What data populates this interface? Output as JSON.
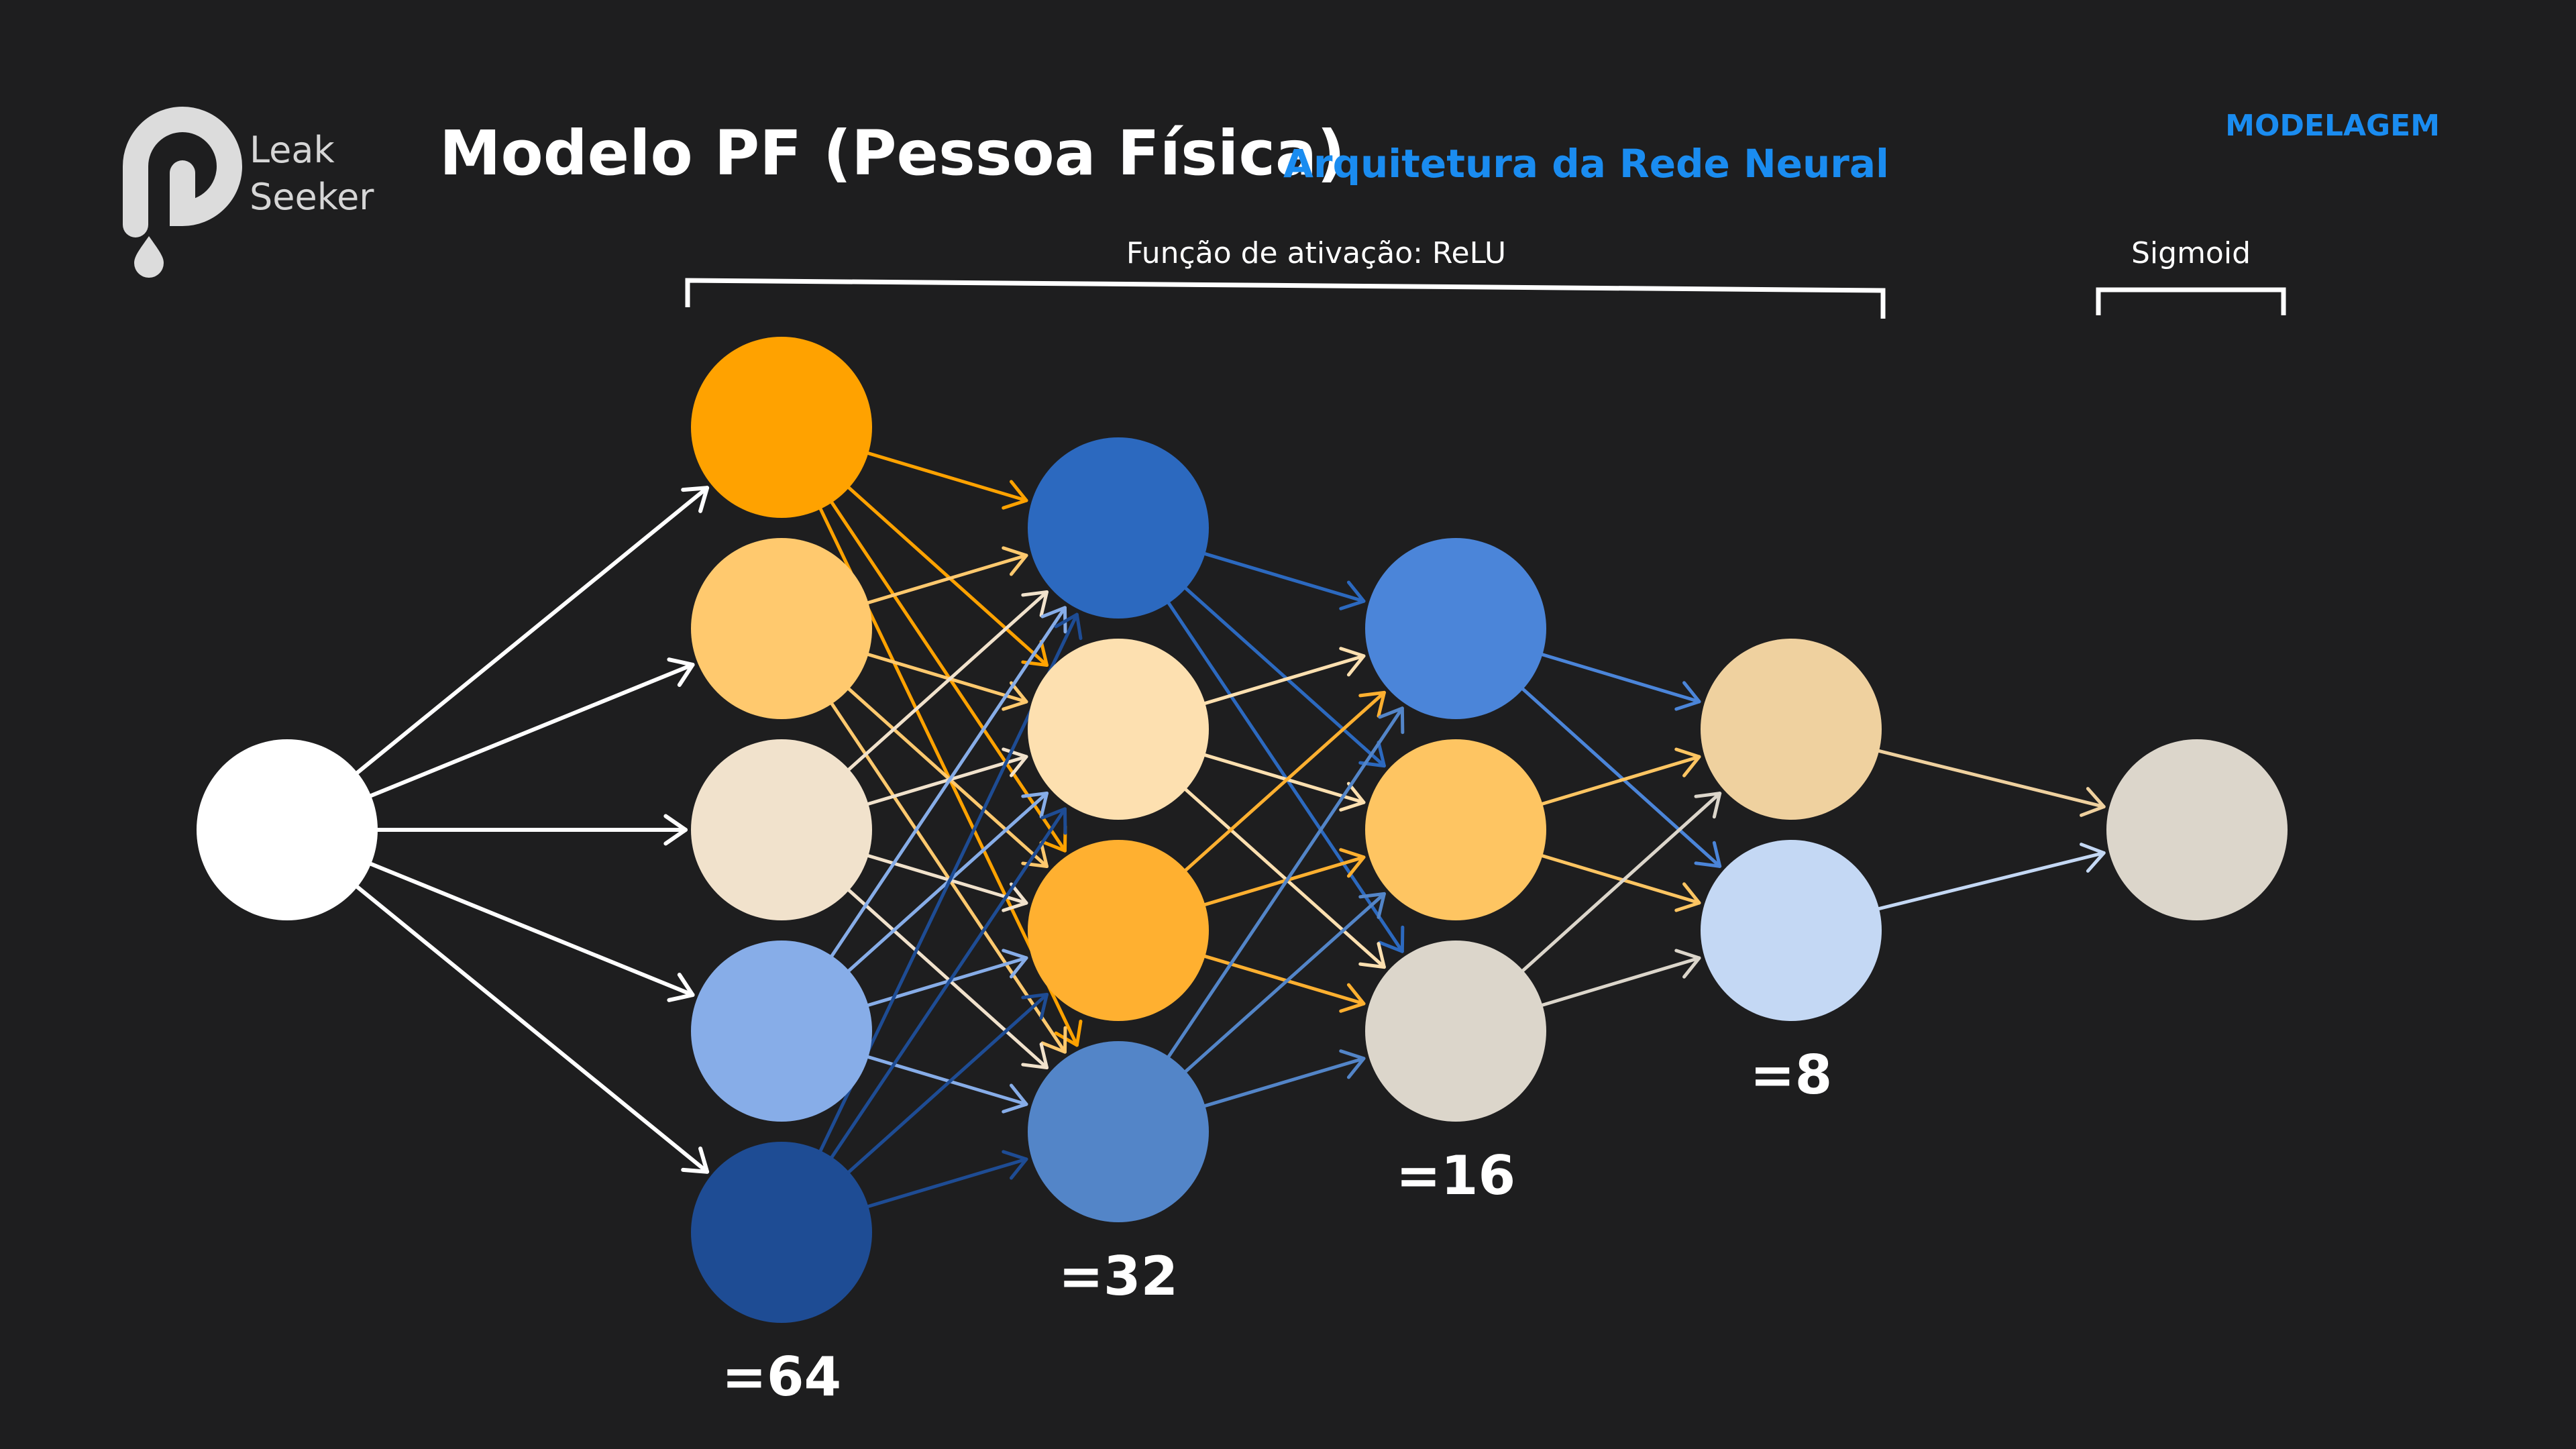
{
  "header": {
    "title": "Modelo PF (Pessoa Física)",
    "subtitle": "Arquitetura da Rede Neural",
    "section": "MODELAGEM"
  },
  "logo": {
    "line1": "Leak",
    "line2": "Seeker"
  },
  "brackets": {
    "relu_label": "Função de ativação: ReLU",
    "sigmoid_label": "Sigmoid"
  },
  "layers": [
    {
      "id": "input",
      "count_label": "",
      "colors": [
        "#ffffff"
      ]
    },
    {
      "id": "dense1",
      "count_label": "=64",
      "colors": [
        "#ffa200",
        "#ffc96e",
        "#f1e2cc",
        "#87ade8",
        "#1e4c94"
      ]
    },
    {
      "id": "dense2",
      "count_label": "=32",
      "colors": [
        "#2c69bf",
        "#fde0b0",
        "#ffb030",
        "#5385c8"
      ]
    },
    {
      "id": "dense3",
      "count_label": "=16",
      "colors": [
        "#4b85d9",
        "#fec562",
        "#dcd6cb"
      ]
    },
    {
      "id": "dense4",
      "count_label": "=8",
      "colors": [
        "#efd19f",
        "#c4d8f4"
      ]
    },
    {
      "id": "output",
      "count_label": "",
      "colors": [
        "#dcd6cb"
      ]
    }
  ]
}
